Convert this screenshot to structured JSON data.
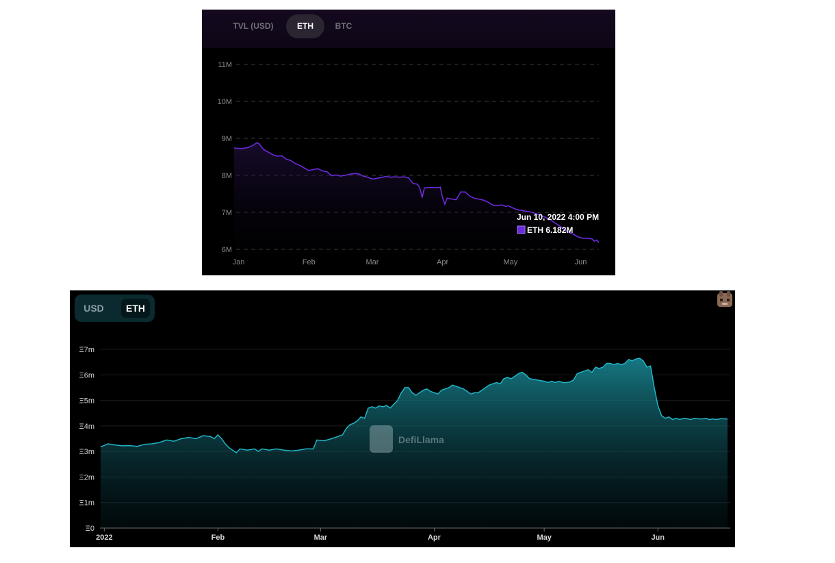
{
  "top_panel": {
    "tabs": [
      {
        "label": "TVL (USD)",
        "active": false
      },
      {
        "label": "ETH",
        "active": true
      },
      {
        "label": "BTC",
        "active": false
      }
    ],
    "tooltip": {
      "date": "Jun 10, 2022 4:00 PM",
      "series_label": "ETH 6.182M",
      "swatch_color": "#6a2bd9"
    },
    "line_color": "#6a2bd9"
  },
  "bottom_panel": {
    "tabs": [
      {
        "label": "USD",
        "active": false
      },
      {
        "label": "ETH",
        "active": true
      }
    ],
    "watermark": "DefiLlama",
    "line_color": "#1fb5c6"
  },
  "chart_data": [
    {
      "type": "line",
      "title": "",
      "xlabel": "",
      "ylabel": "",
      "ylim": [
        6,
        11
      ],
      "y_unit": "M",
      "y_ticks": [
        "11M",
        "10M",
        "9M",
        "8M",
        "7M",
        "6M"
      ],
      "x_ticks": [
        {
          "label": "Jan",
          "day": 2
        },
        {
          "label": "Feb",
          "day": 33
        },
        {
          "label": "Mar",
          "day": 61
        },
        {
          "label": "Apr",
          "day": 92
        },
        {
          "label": "May",
          "day": 122
        },
        {
          "label": "Jun",
          "day": 153
        }
      ],
      "grid": true,
      "legend": "none",
      "series": [
        {
          "values": [
            [
              0,
              8.74
            ],
            [
              3,
              8.72
            ],
            [
              6,
              8.75
            ],
            [
              8,
              8.8
            ],
            [
              10,
              8.88
            ],
            [
              11,
              8.86
            ],
            [
              13,
              8.7
            ],
            [
              15,
              8.63
            ],
            [
              17,
              8.56
            ],
            [
              19,
              8.52
            ],
            [
              21,
              8.53
            ],
            [
              23,
              8.44
            ],
            [
              25,
              8.4
            ],
            [
              27,
              8.32
            ],
            [
              29,
              8.27
            ],
            [
              31,
              8.2
            ],
            [
              33,
              8.13
            ],
            [
              35,
              8.16
            ],
            [
              37,
              8.18
            ],
            [
              39,
              8.12
            ],
            [
              41,
              8.1
            ],
            [
              43,
              7.99
            ],
            [
              45,
              8.01
            ],
            [
              47,
              7.98
            ],
            [
              49,
              8.0
            ],
            [
              51,
              8.03
            ],
            [
              53,
              8.05
            ],
            [
              55,
              8.04
            ],
            [
              57,
              7.98
            ],
            [
              59,
              7.95
            ],
            [
              61,
              7.9
            ],
            [
              63,
              7.92
            ],
            [
              65,
              7.94
            ],
            [
              67,
              7.97
            ],
            [
              69,
              7.95
            ],
            [
              71,
              7.96
            ],
            [
              73,
              7.95
            ],
            [
              75,
              7.96
            ],
            [
              77,
              7.93
            ],
            [
              79,
              7.78
            ],
            [
              81,
              7.76
            ],
            [
              82,
              7.65
            ],
            [
              83,
              7.4
            ],
            [
              84,
              7.66
            ],
            [
              86,
              7.67
            ],
            [
              88,
              7.67
            ],
            [
              90,
              7.67
            ],
            [
              91,
              7.68
            ],
            [
              92,
              7.4
            ],
            [
              93,
              7.22
            ],
            [
              94,
              7.38
            ],
            [
              96,
              7.36
            ],
            [
              98,
              7.34
            ],
            [
              100,
              7.55
            ],
            [
              102,
              7.55
            ],
            [
              104,
              7.44
            ],
            [
              106,
              7.38
            ],
            [
              108,
              7.36
            ],
            [
              110,
              7.33
            ],
            [
              112,
              7.28
            ],
            [
              114,
              7.2
            ],
            [
              116,
              7.18
            ],
            [
              118,
              7.2
            ],
            [
              120,
              7.16
            ],
            [
              121,
              7.18
            ],
            [
              123,
              7.12
            ],
            [
              125,
              7.07
            ],
            [
              127,
              7.05
            ],
            [
              130,
              7.02
            ],
            [
              132,
              6.99
            ],
            [
              134,
              6.95
            ],
            [
              136,
              6.9
            ],
            [
              138,
              6.85
            ],
            [
              140,
              6.78
            ],
            [
              142,
              6.7
            ],
            [
              144,
              6.62
            ],
            [
              146,
              6.52
            ],
            [
              148,
              6.45
            ],
            [
              150,
              6.4
            ],
            [
              152,
              6.33
            ],
            [
              154,
              6.3
            ],
            [
              156,
              6.3
            ],
            [
              158,
              6.28
            ],
            [
              159,
              6.22
            ],
            [
              160,
              6.25
            ],
            [
              161,
              6.18
            ]
          ]
        }
      ]
    },
    {
      "type": "area",
      "title": "",
      "xlabel": "",
      "ylabel": "",
      "ylim": [
        0,
        7
      ],
      "y_ticks": [
        "Ξ7m",
        "Ξ6m",
        "Ξ5m",
        "Ξ4m",
        "Ξ3m",
        "Ξ2m",
        "Ξ1m",
        "Ξ0"
      ],
      "x_ticks": [
        {
          "label": "2022",
          "day": 1
        },
        {
          "label": "Feb",
          "day": 32
        },
        {
          "label": "Mar",
          "day": 60
        },
        {
          "label": "Apr",
          "day": 91
        },
        {
          "label": "May",
          "day": 121
        },
        {
          "label": "Jun",
          "day": 152
        }
      ],
      "grid": true,
      "legend": "none",
      "series": [
        {
          "values": [
            [
              0,
              3.18
            ],
            [
              2,
              3.3
            ],
            [
              4,
              3.25
            ],
            [
              6,
              3.22
            ],
            [
              8,
              3.23
            ],
            [
              10,
              3.2
            ],
            [
              12,
              3.28
            ],
            [
              14,
              3.3
            ],
            [
              16,
              3.35
            ],
            [
              18,
              3.45
            ],
            [
              20,
              3.4
            ],
            [
              22,
              3.5
            ],
            [
              24,
              3.55
            ],
            [
              26,
              3.5
            ],
            [
              28,
              3.62
            ],
            [
              30,
              3.58
            ],
            [
              31,
              3.5
            ],
            [
              32,
              3.65
            ],
            [
              33,
              3.5
            ],
            [
              34,
              3.3
            ],
            [
              35,
              3.15
            ],
            [
              36,
              3.05
            ],
            [
              37,
              2.95
            ],
            [
              38,
              3.1
            ],
            [
              40,
              3.05
            ],
            [
              42,
              3.1
            ],
            [
              43,
              3.0
            ],
            [
              44,
              3.1
            ],
            [
              46,
              3.05
            ],
            [
              48,
              3.1
            ],
            [
              50,
              3.05
            ],
            [
              52,
              3.02
            ],
            [
              54,
              3.05
            ],
            [
              56,
              3.1
            ],
            [
              58,
              3.1
            ],
            [
              59,
              3.45
            ],
            [
              61,
              3.42
            ],
            [
              63,
              3.5
            ],
            [
              65,
              3.6
            ],
            [
              66,
              3.65
            ],
            [
              67,
              3.9
            ],
            [
              68,
              4.05
            ],
            [
              69,
              4.1
            ],
            [
              70,
              4.2
            ],
            [
              71,
              4.35
            ],
            [
              72,
              4.3
            ],
            [
              73,
              4.7
            ],
            [
              74,
              4.75
            ],
            [
              75,
              4.7
            ],
            [
              76,
              4.78
            ],
            [
              77,
              4.75
            ],
            [
              78,
              4.8
            ],
            [
              79,
              4.7
            ],
            [
              80,
              4.85
            ],
            [
              81,
              5.0
            ],
            [
              82,
              5.3
            ],
            [
              83,
              5.5
            ],
            [
              84,
              5.5
            ],
            [
              85,
              5.3
            ],
            [
              86,
              5.2
            ],
            [
              88,
              5.4
            ],
            [
              89,
              5.45
            ],
            [
              90,
              5.35
            ],
            [
              91,
              5.3
            ],
            [
              92,
              5.25
            ],
            [
              93,
              5.4
            ],
            [
              95,
              5.5
            ],
            [
              96,
              5.6
            ],
            [
              97,
              5.55
            ],
            [
              98,
              5.5
            ],
            [
              99,
              5.45
            ],
            [
              100,
              5.35
            ],
            [
              101,
              5.25
            ],
            [
              102,
              5.3
            ],
            [
              103,
              5.3
            ],
            [
              104,
              5.4
            ],
            [
              105,
              5.5
            ],
            [
              106,
              5.6
            ],
            [
              107,
              5.65
            ],
            [
              108,
              5.7
            ],
            [
              109,
              5.65
            ],
            [
              110,
              5.85
            ],
            [
              111,
              5.9
            ],
            [
              112,
              5.85
            ],
            [
              113,
              5.95
            ],
            [
              114,
              6.05
            ],
            [
              115,
              6.1
            ],
            [
              116,
              6.0
            ],
            [
              117,
              5.85
            ],
            [
              119,
              5.8
            ],
            [
              121,
              5.75
            ],
            [
              122,
              5.7
            ],
            [
              123,
              5.75
            ],
            [
              124,
              5.7
            ],
            [
              125,
              5.75
            ],
            [
              126,
              5.7
            ],
            [
              127,
              5.7
            ],
            [
              128,
              5.72
            ],
            [
              129,
              5.8
            ],
            [
              130,
              6.05
            ],
            [
              131,
              6.1
            ],
            [
              132,
              6.15
            ],
            [
              133,
              6.2
            ],
            [
              134,
              6.1
            ],
            [
              135,
              6.3
            ],
            [
              136,
              6.25
            ],
            [
              137,
              6.3
            ],
            [
              138,
              6.45
            ],
            [
              139,
              6.45
            ],
            [
              140,
              6.4
            ],
            [
              141,
              6.45
            ],
            [
              142,
              6.4
            ],
            [
              143,
              6.45
            ],
            [
              144,
              6.6
            ],
            [
              145,
              6.55
            ],
            [
              146,
              6.62
            ],
            [
              147,
              6.65
            ],
            [
              148,
              6.55
            ],
            [
              149,
              6.3
            ],
            [
              150,
              6.35
            ],
            [
              151,
              5.5
            ],
            [
              152,
              4.8
            ],
            [
              153,
              4.4
            ],
            [
              154,
              4.3
            ],
            [
              155,
              4.35
            ],
            [
              156,
              4.25
            ],
            [
              157,
              4.3
            ],
            [
              158,
              4.25
            ],
            [
              159,
              4.3
            ],
            [
              160,
              4.28
            ],
            [
              161,
              4.25
            ],
            [
              162,
              4.3
            ],
            [
              163,
              4.28
            ],
            [
              164,
              4.27
            ],
            [
              165,
              4.3
            ],
            [
              166,
              4.25
            ],
            [
              167,
              4.27
            ],
            [
              168,
              4.25
            ],
            [
              169,
              4.28
            ],
            [
              170,
              4.28
            ],
            [
              171,
              4.27
            ]
          ]
        }
      ]
    }
  ]
}
